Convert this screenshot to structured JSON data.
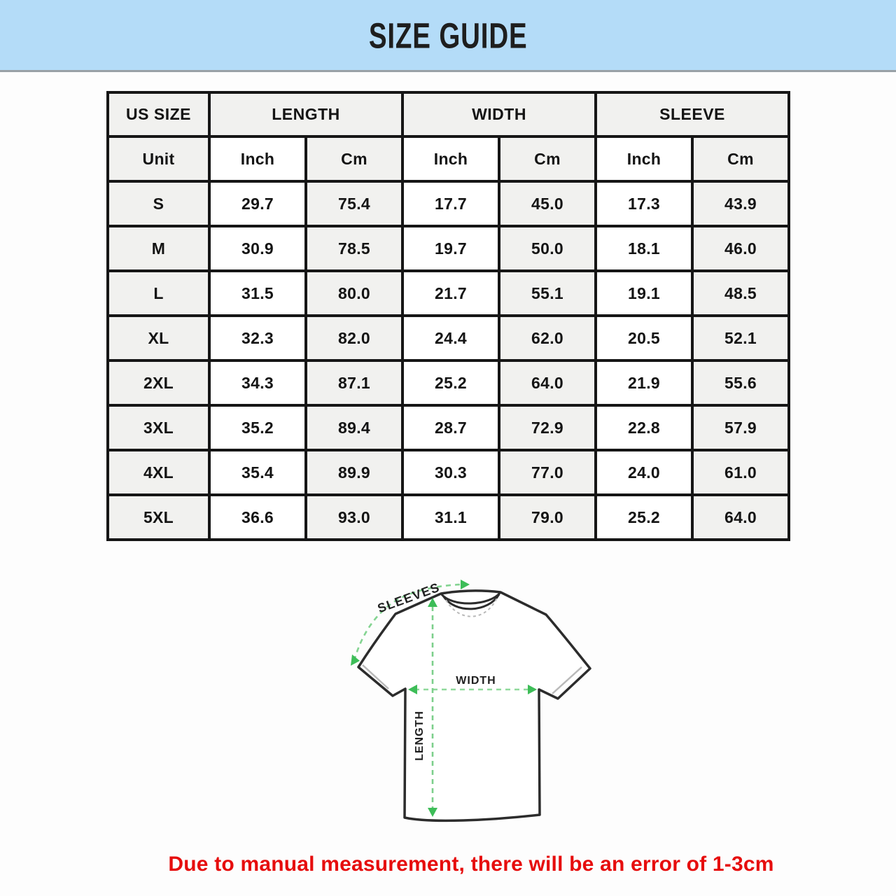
{
  "banner": {
    "title": "SIZE GUIDE",
    "bg_color": "#b4dcf8"
  },
  "note": {
    "text": "Due to manual measurement, there will be an error of 1-3cm",
    "color": "#e60d0d"
  },
  "diagram": {
    "sleeves_label": "SLEEVES",
    "width_label": "WIDTH",
    "length_label": "LENGTH",
    "arrow_color": "#3dbd58",
    "dash_color": "#84d492"
  },
  "chart_data": {
    "type": "table",
    "title": "SIZE GUIDE",
    "column_groups": [
      {
        "label": "US SIZE",
        "span": 1
      },
      {
        "label": "LENGTH",
        "span": 2
      },
      {
        "label": "WIDTH",
        "span": 2
      },
      {
        "label": "SLEEVE",
        "span": 2
      }
    ],
    "unit_row": [
      "Unit",
      "Inch",
      "Cm",
      "Inch",
      "Cm",
      "Inch",
      "Cm"
    ],
    "rows": [
      [
        "S",
        "29.7",
        "75.4",
        "17.7",
        "45.0",
        "17.3",
        "43.9"
      ],
      [
        "M",
        "30.9",
        "78.5",
        "19.7",
        "50.0",
        "18.1",
        "46.0"
      ],
      [
        "L",
        "31.5",
        "80.0",
        "21.7",
        "55.1",
        "19.1",
        "48.5"
      ],
      [
        "XL",
        "32.3",
        "82.0",
        "24.4",
        "62.0",
        "20.5",
        "52.1"
      ],
      [
        "2XL",
        "34.3",
        "87.1",
        "25.2",
        "64.0",
        "21.9",
        "55.6"
      ],
      [
        "3XL",
        "35.2",
        "89.4",
        "28.7",
        "72.9",
        "22.8",
        "57.9"
      ],
      [
        "4XL",
        "35.4",
        "89.9",
        "30.3",
        "77.0",
        "24.0",
        "61.0"
      ],
      [
        "5XL",
        "36.6",
        "93.0",
        "31.1",
        "79.0",
        "25.2",
        "64.0"
      ]
    ]
  }
}
